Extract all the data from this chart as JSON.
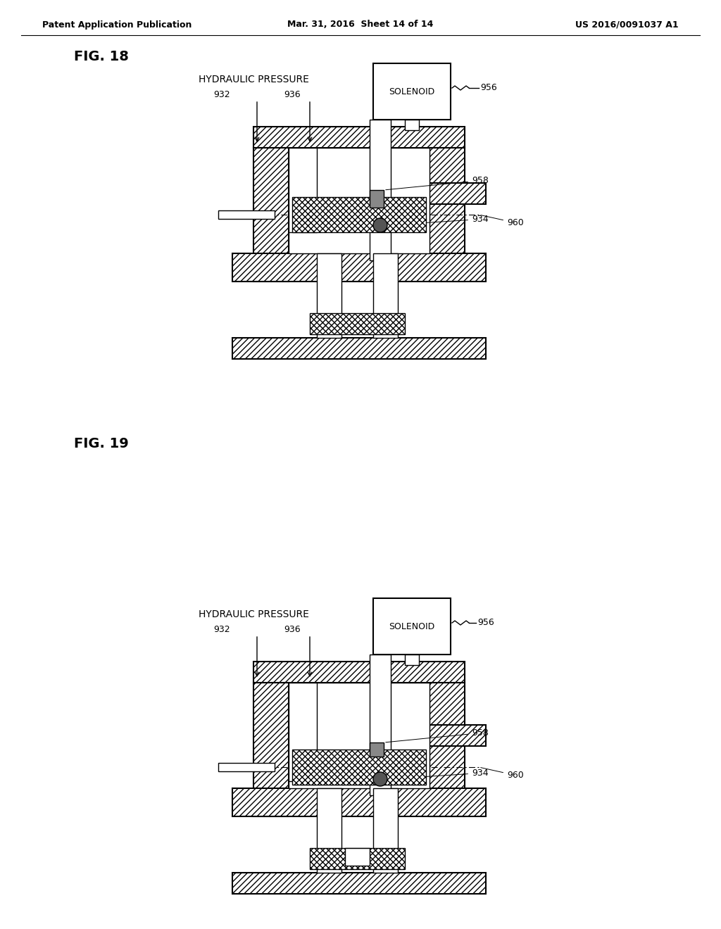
{
  "bg_color": "#ffffff",
  "text_color": "#000000",
  "line_color": "#000000",
  "hatch_color": "#000000",
  "header_left": "Patent Application Publication",
  "header_mid": "Mar. 31, 2016  Sheet 14 of 14",
  "header_right": "US 2016/0091037 A1",
  "fig18_label": "FIG. 18",
  "fig19_label": "FIG. 19",
  "label_hydraulic": "HYDRAULIC PRESSURE",
  "label_solenoid": "SOLENOID",
  "label_932": "932",
  "label_934": "934",
  "label_936": "936",
  "label_956": "956",
  "label_958": "958",
  "label_960": "960"
}
